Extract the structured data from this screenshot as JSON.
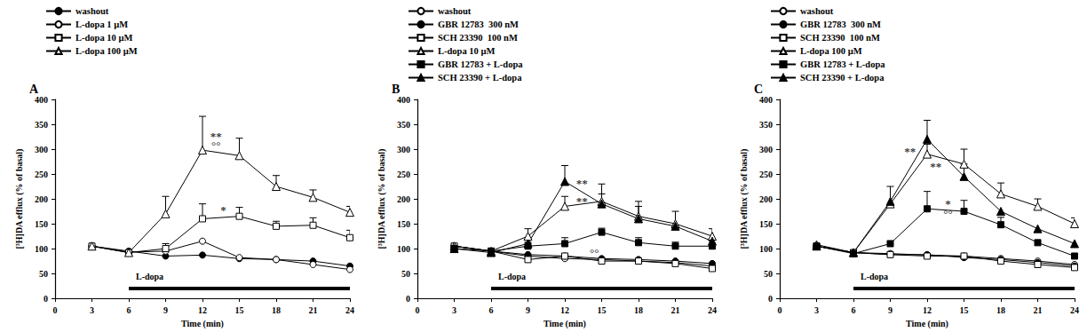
{
  "chart_data": [
    {
      "type": "line",
      "title": "A",
      "x_label": "Time (min)",
      "y_label": "[³H]DA efflux (% of basal)",
      "x": [
        3,
        6,
        9,
        12,
        15,
        18,
        21,
        24
      ],
      "xlim": [
        0,
        24
      ],
      "xticks": [
        0,
        3,
        6,
        9,
        12,
        15,
        18,
        21,
        24
      ],
      "ylim": [
        0,
        400
      ],
      "yticks": [
        0,
        50,
        100,
        150,
        200,
        250,
        300,
        350,
        400
      ],
      "grid": false,
      "treatment": {
        "label": "L-dopa",
        "start": 6,
        "end": 24
      },
      "annotations": [
        {
          "text": "**",
          "x": 13.1,
          "y": 326
        },
        {
          "text": "°°",
          "x": 13.1,
          "y": 308
        },
        {
          "text": "*",
          "x": 13.7,
          "y": 178
        }
      ],
      "series": [
        {
          "name": "washout",
          "color": "#000000",
          "marker": "circle",
          "values": [
            105,
            95,
            85,
            87,
            80,
            78,
            75,
            65
          ]
        },
        {
          "name": "L-dopa 1 µM",
          "color": "#000000",
          "marker": "open-circle",
          "values": [
            105,
            93,
            95,
            115,
            82,
            78,
            68,
            58
          ]
        },
        {
          "name": "L-dopa 10 µM",
          "color": "#000000",
          "marker": "open-rect",
          "values": [
            105,
            92,
            100,
            160,
            165,
            145,
            147,
            122
          ],
          "errors": [
            null,
            null,
            10,
            30,
            18,
            10,
            15,
            15
          ]
        },
        {
          "name": "L-dopa 100 µM",
          "color": "#000000",
          "marker": "open-triangle",
          "values": [
            105,
            92,
            170,
            298,
            287,
            225,
            203,
            173
          ],
          "errors": [
            null,
            null,
            35,
            68,
            35,
            22,
            15,
            12
          ]
        }
      ]
    },
    {
      "type": "line",
      "title": "B",
      "x_label": "Time (min)",
      "y_label": "[³H]DA efflux (% of basal)",
      "x": [
        3,
        6,
        9,
        12,
        15,
        18,
        21,
        24
      ],
      "xlim": [
        0,
        24
      ],
      "xticks": [
        0,
        3,
        6,
        9,
        12,
        15,
        18,
        21,
        24
      ],
      "ylim": [
        0,
        400
      ],
      "yticks": [
        0,
        50,
        100,
        150,
        200,
        250,
        300,
        350,
        400
      ],
      "grid": false,
      "treatment": {
        "label": "L-dopa",
        "start": 6,
        "end": 24
      },
      "annotations": [
        {
          "text": "**",
          "x": 13.4,
          "y": 232
        },
        {
          "text": "**",
          "x": 13.4,
          "y": 195
        },
        {
          "text": "°°",
          "x": 14.4,
          "y": 92
        }
      ],
      "series": [
        {
          "name": "washout",
          "color": "#000000",
          "marker": "open-circle",
          "values": [
            105,
            95,
            85,
            80,
            78,
            75,
            72,
            65
          ]
        },
        {
          "name": "GBR 12783  300 nM",
          "color": "#000000",
          "marker": "circle",
          "values": [
            105,
            95,
            88,
            85,
            80,
            78,
            75,
            70
          ]
        },
        {
          "name": "SCH 23390  100 nM",
          "color": "#000000",
          "marker": "open-rect",
          "values": [
            105,
            95,
            78,
            85,
            75,
            75,
            70,
            60
          ]
        },
        {
          "name": "L-dopa 10 µM",
          "color": "#000000",
          "marker": "open-triangle",
          "values": [
            105,
            95,
            125,
            185,
            195,
            165,
            150,
            125
          ],
          "errors": [
            null,
            null,
            15,
            20,
            35,
            20,
            25,
            15
          ]
        },
        {
          "name": "GBR 12783 + L-dopa",
          "color": "#000000",
          "marker": "rect",
          "values": [
            100,
            95,
            105,
            110,
            133,
            112,
            105,
            105
          ],
          "errors": [
            null,
            null,
            8,
            12,
            8,
            10,
            8,
            10
          ]
        },
        {
          "name": "SCH 23390 + L-dopa",
          "color": "#000000",
          "marker": "triangle",
          "values": [
            100,
            92,
            110,
            235,
            190,
            160,
            145,
            115
          ],
          "errors": [
            null,
            null,
            null,
            32,
            20,
            35,
            null,
            null
          ]
        }
      ]
    },
    {
      "type": "line",
      "title": "C",
      "x_label": "Time (min)",
      "y_label": "[³H]DA efflux (% of basal)",
      "x": [
        3,
        6,
        9,
        12,
        15,
        18,
        21,
        24
      ],
      "xlim": [
        0,
        24
      ],
      "xticks": [
        0,
        3,
        6,
        9,
        12,
        15,
        18,
        21,
        24
      ],
      "ylim": [
        0,
        400
      ],
      "yticks": [
        0,
        50,
        100,
        150,
        200,
        250,
        300,
        350,
        400
      ],
      "grid": false,
      "treatment": {
        "label": "L-dopa",
        "start": 6,
        "end": 24
      },
      "annotations": [
        {
          "text": "**",
          "x": 10.6,
          "y": 296
        },
        {
          "text": "**",
          "x": 12.7,
          "y": 265
        },
        {
          "text": "*",
          "x": 13.7,
          "y": 190
        },
        {
          "text": "°°",
          "x": 13.7,
          "y": 170
        }
      ],
      "series": [
        {
          "name": "washout",
          "color": "#000000",
          "marker": "open-circle",
          "values": [
            105,
            92,
            90,
            87,
            85,
            80,
            75,
            68
          ]
        },
        {
          "name": "GBR 12783  300 nM",
          "color": "#000000",
          "marker": "circle",
          "values": [
            105,
            92,
            88,
            88,
            82,
            78,
            72,
            65
          ]
        },
        {
          "name": "SCH 23390  100 nM",
          "color": "#000000",
          "marker": "open-rect",
          "values": [
            105,
            92,
            88,
            85,
            85,
            75,
            68,
            62
          ]
        },
        {
          "name": "L-dopa 100 µM",
          "color": "#000000",
          "marker": "open-triangle",
          "values": [
            108,
            92,
            190,
            290,
            270,
            210,
            185,
            150
          ],
          "errors": [
            null,
            null,
            35,
            20,
            30,
            22,
            15,
            12
          ]
        },
        {
          "name": "GBR 12783 + L-dopa",
          "color": "#000000",
          "marker": "rect",
          "values": [
            105,
            90,
            110,
            180,
            175,
            148,
            112,
            85
          ],
          "errors": [
            null,
            null,
            null,
            35,
            22,
            15,
            null,
            null
          ]
        },
        {
          "name": "SCH 23390 + L-dopa",
          "color": "#000000",
          "marker": "triangle",
          "values": [
            105,
            92,
            195,
            320,
            245,
            175,
            140,
            110
          ],
          "errors": [
            null,
            null,
            null,
            38,
            25,
            null,
            null,
            null
          ]
        }
      ]
    }
  ]
}
